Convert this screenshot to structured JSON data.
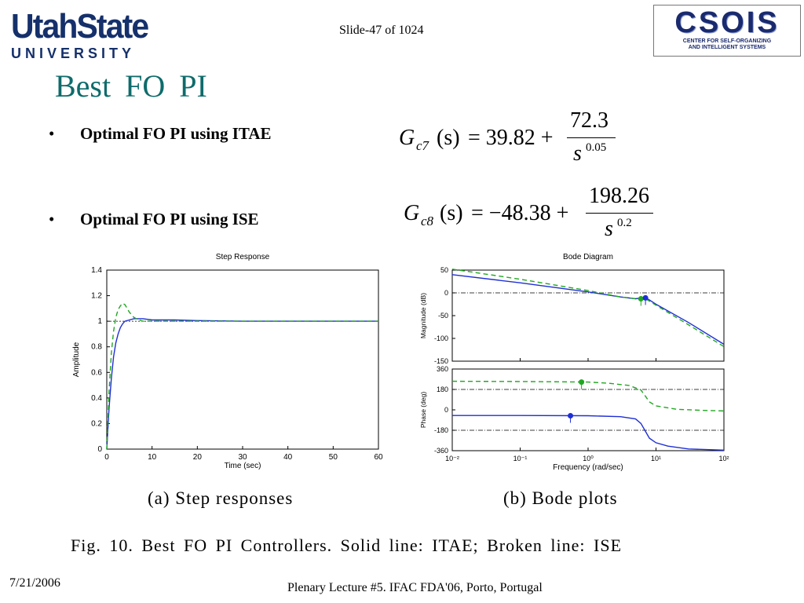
{
  "header": {
    "usu_logo_top": "UtahState",
    "usu_logo_bottom": "UNIVERSITY",
    "csois_logo_word": "CSOIS",
    "csois_logo_sub1": "CENTER FOR SELF-ORGANIZING",
    "csois_logo_sub2": "AND INTELLIGENT SYSTEMS",
    "slide_number": "Slide-47 of 1024"
  },
  "title": "Best FO PI",
  "bullets": [
    {
      "text": "Optimal FO PI using ITAE"
    },
    {
      "text": "Optimal FO PI using ISE"
    }
  ],
  "equations": {
    "itae": {
      "lhs": "G",
      "sub": "c7",
      "arg": "(s)",
      "const": "= 39.82 +",
      "num": "72.3",
      "den": "s",
      "exp": "0.05"
    },
    "ise": {
      "lhs": "G",
      "sub": "c8",
      "arg": "(s)",
      "const": "= −48.38 +",
      "num": "198.26",
      "den": "s",
      "exp": "0.2"
    }
  },
  "figure": {
    "caption_a": "(a)  Step responses",
    "caption_b": "(b)  Bode plots",
    "caption": "Fig. 10.    Best FO PI Controllers. Solid line: ITAE; Broken line: ISE"
  },
  "chart_data": [
    {
      "type": "line",
      "title": "Step Response",
      "xlabel": "Time (sec)",
      "ylabel": "Amplitude",
      "xlim": [
        0,
        60
      ],
      "ylim": [
        0,
        1.4
      ],
      "xticks": [
        0,
        10,
        20,
        30,
        40,
        50,
        60
      ],
      "yticks": [
        0,
        0.2,
        0.4,
        0.6,
        0.8,
        1,
        1.2,
        1.4
      ],
      "reference_line": 1,
      "series": [
        {
          "style": "solid",
          "color": "#1f2fd6",
          "x": [
            0,
            0.5,
            1,
            1.5,
            2,
            2.5,
            3,
            3.5,
            4,
            5,
            6,
            8,
            10,
            15,
            20,
            30,
            40,
            50,
            60
          ],
          "y": [
            0,
            0.32,
            0.55,
            0.72,
            0.83,
            0.9,
            0.95,
            0.98,
            1.0,
            1.01,
            1.02,
            1.02,
            1.01,
            1.01,
            1.005,
            1.0,
            1.0,
            1.0,
            1.0
          ]
        },
        {
          "style": "dashed",
          "color": "#22a722",
          "x": [
            0,
            0.5,
            1,
            1.5,
            2,
            2.5,
            3,
            3.5,
            4,
            4.5,
            5,
            6,
            7,
            8,
            10,
            15,
            20,
            30,
            40,
            50,
            60
          ],
          "y": [
            0,
            0.45,
            0.75,
            0.92,
            1.03,
            1.09,
            1.12,
            1.14,
            1.13,
            1.1,
            1.07,
            1.03,
            1.01,
            1.0,
            1.0,
            1.0,
            1.0,
            1.0,
            1.0,
            1.0,
            1.0
          ]
        }
      ]
    },
    {
      "type": "line",
      "title": "Bode Diagram",
      "xlabel": "Frequency  (rad/sec)",
      "xscale": "log",
      "xlim": [
        0.01,
        100
      ],
      "xticks": [
        "10⁻²",
        "10⁻¹",
        "10⁰",
        "10¹",
        "10²"
      ],
      "panels": [
        {
          "ylabel": "Magnitude (dB)",
          "ylim": [
            -150,
            50
          ],
          "yticks": [
            50,
            0,
            -50,
            -100,
            -150
          ],
          "reference_line": 0,
          "series": [
            {
              "style": "solid",
              "color": "#1f2fd6",
              "x": [
                0.01,
                0.1,
                1,
                3,
                5,
                7,
                10,
                30,
                100
              ],
              "y": [
                40,
                22,
                2,
                -9,
                -13,
                -10,
                -25,
                -65,
                -113
              ]
            },
            {
              "style": "dashed",
              "color": "#22a722",
              "x": [
                0.01,
                0.1,
                1,
                3,
                5,
                7,
                10,
                30,
                100
              ],
              "y": [
                52,
                30,
                5,
                -9,
                -13,
                -13,
                -27,
                -70,
                -118
              ]
            }
          ],
          "markers": [
            {
              "color": "#22a722",
              "x": 6,
              "y": -13
            },
            {
              "color": "#1f2fd6",
              "x": 7,
              "y": -11
            }
          ]
        },
        {
          "ylabel": "Phase (deg)",
          "ylim": [
            -360,
            360
          ],
          "yticks": [
            360,
            180,
            0,
            -180,
            -360
          ],
          "reference_lines": [
            180,
            -180
          ],
          "series": [
            {
              "style": "solid",
              "color": "#1f2fd6",
              "x": [
                0.01,
                0.1,
                1,
                3,
                5,
                6,
                7,
                8,
                10,
                15,
                30,
                100
              ],
              "y": [
                -50,
                -50,
                -52,
                -60,
                -80,
                -120,
                -190,
                -250,
                -290,
                -320,
                -345,
                -355
              ]
            },
            {
              "style": "dashed",
              "color": "#22a722",
              "x": [
                0.01,
                0.1,
                1,
                2,
                4,
                6,
                7,
                8,
                10,
                20,
                50,
                100
              ],
              "y": [
                252,
                250,
                245,
                235,
                215,
                175,
                120,
                70,
                35,
                5,
                -5,
                -10
              ]
            }
          ],
          "markers": [
            {
              "color": "#22a722",
              "x": 0.8,
              "y": 245
            },
            {
              "color": "#1f2fd6",
              "x": 0.55,
              "y": -52
            }
          ]
        }
      ]
    }
  ],
  "footer": {
    "date": "7/21/2006",
    "lecture": "Plenary Lecture #5. IFAC FDA'06, Porto, Portugal"
  }
}
